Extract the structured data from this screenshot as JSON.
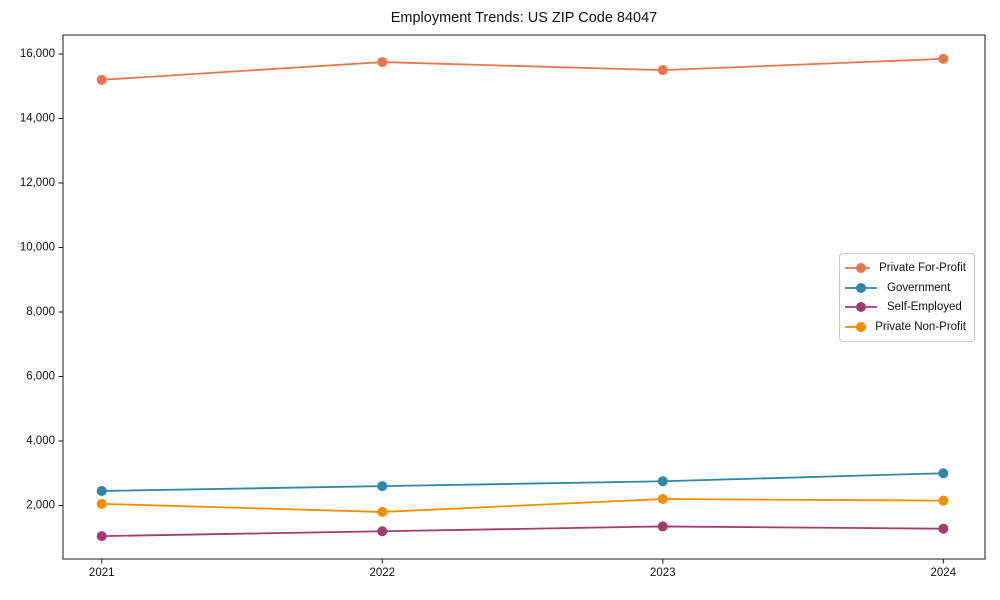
{
  "figure": {
    "background": "#ffffff",
    "text_color": "#111111",
    "spine_color": "#1a1a1a",
    "legend_border_color": "#c8c8c8"
  },
  "chart_data": {
    "type": "line",
    "title": "Employment Trends: US ZIP Code 84047",
    "xlabel": "",
    "ylabel": "",
    "categories": [
      "2021",
      "2022",
      "2023",
      "2024"
    ],
    "series": [
      {
        "name": "Private For-Profit",
        "color": "#E8764C",
        "values": [
          15200,
          15750,
          15500,
          15850
        ]
      },
      {
        "name": "Government",
        "color": "#2E86A8",
        "values": [
          2450,
          2600,
          2750,
          3000
        ]
      },
      {
        "name": "Self-Employed",
        "color": "#A23B72",
        "values": [
          1050,
          1200,
          1350,
          1280
        ]
      },
      {
        "name": "Private Non-Profit",
        "color": "#F18F01",
        "values": [
          2050,
          1800,
          2200,
          2150
        ]
      }
    ],
    "y_ticks": [
      {
        "value": 2000,
        "label": "2,000"
      },
      {
        "value": 4000,
        "label": "4,000"
      },
      {
        "value": 6000,
        "label": "6,000"
      },
      {
        "value": 8000,
        "label": "8,000"
      },
      {
        "value": 10000,
        "label": "10,000"
      },
      {
        "value": 12000,
        "label": "12,000"
      },
      {
        "value": 14000,
        "label": "14,000"
      },
      {
        "value": 16000,
        "label": "16,000"
      }
    ],
    "ylim": [
      340,
      16590
    ],
    "grid": false,
    "marker": "circle",
    "legend_position": "right"
  }
}
